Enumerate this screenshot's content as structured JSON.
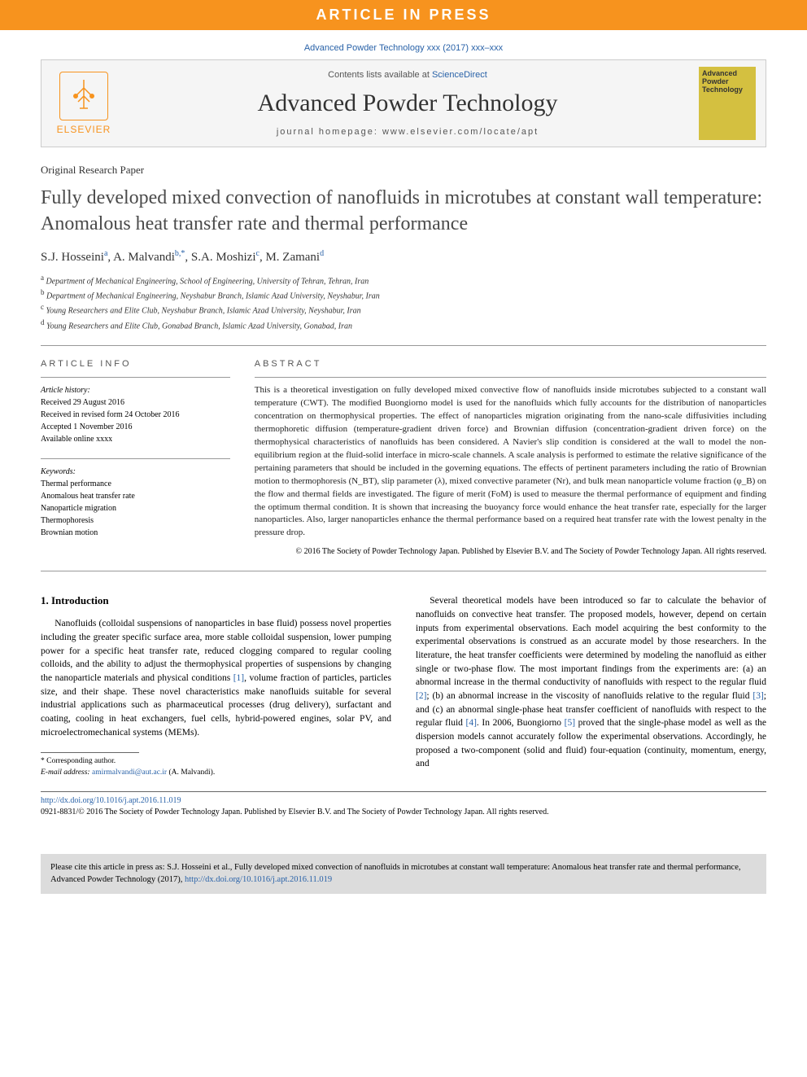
{
  "banner": "ARTICLE IN PRESS",
  "topCitation": "Advanced Powder Technology xxx (2017) xxx–xxx",
  "header": {
    "publisher": "ELSEVIER",
    "contentsLine": "Contents lists available at",
    "scienceDirect": "ScienceDirect",
    "journalName": "Advanced Powder Technology",
    "homepage": "journal homepage: www.elsevier.com/locate/apt",
    "coverTitle": "Advanced Powder Technology"
  },
  "articleType": "Original Research Paper",
  "title": "Fully developed mixed convection of nanofluids in microtubes at constant wall temperature: Anomalous heat transfer rate and thermal performance",
  "authors": [
    {
      "name": "S.J. Hosseini",
      "sup": "a"
    },
    {
      "name": "A. Malvandi",
      "sup": "b,*"
    },
    {
      "name": "S.A. Moshizi",
      "sup": "c"
    },
    {
      "name": "M. Zamani",
      "sup": "d"
    }
  ],
  "affiliations": [
    {
      "sup": "a",
      "text": "Department of Mechanical Engineering, School of Engineering, University of Tehran, Tehran, Iran"
    },
    {
      "sup": "b",
      "text": "Department of Mechanical Engineering, Neyshabur Branch, Islamic Azad University, Neyshabur, Iran"
    },
    {
      "sup": "c",
      "text": "Young Researchers and Elite Club, Neyshabur Branch, Islamic Azad University, Neyshabur, Iran"
    },
    {
      "sup": "d",
      "text": "Young Researchers and Elite Club, Gonabad Branch, Islamic Azad University, Gonabad, Iran"
    }
  ],
  "articleInfo": {
    "heading": "ARTICLE INFO",
    "historyLabel": "Article history:",
    "history": [
      "Received 29 August 2016",
      "Received in revised form 24 October 2016",
      "Accepted 1 November 2016",
      "Available online xxxx"
    ],
    "keywordsLabel": "Keywords:",
    "keywords": [
      "Thermal performance",
      "Anomalous heat transfer rate",
      "Nanoparticle migration",
      "Thermophoresis",
      "Brownian motion"
    ]
  },
  "abstract": {
    "heading": "ABSTRACT",
    "text": "This is a theoretical investigation on fully developed mixed convective flow of nanofluids inside microtubes subjected to a constant wall temperature (CWT). The modified Buongiorno model is used for the nanofluids which fully accounts for the distribution of nanoparticles concentration on thermophysical properties. The effect of nanoparticles migration originating from the nano-scale diffusivities including thermophoretic diffusion (temperature-gradient driven force) and Brownian diffusion (concentration-gradient driven force) on the thermophysical characteristics of nanofluids has been considered. A Navier's slip condition is considered at the wall to model the non-equilibrium region at the fluid-solid interface in micro-scale channels. A scale analysis is performed to estimate the relative significance of the pertaining parameters that should be included in the governing equations. The effects of pertinent parameters including the ratio of Brownian motion to thermophoresis (N_BT), slip parameter (λ), mixed convective parameter (Nr), and bulk mean nanoparticle volume fraction (φ_B) on the flow and thermal fields are investigated. The figure of merit (FoM) is used to measure the thermal performance of equipment and finding the optimum thermal condition. It is shown that increasing the buoyancy force would enhance the heat transfer rate, especially for the larger nanoparticles. Also, larger nanoparticles enhance the thermal performance based on a required heat transfer rate with the lowest penalty in the pressure drop.",
    "copyright": "© 2016 The Society of Powder Technology Japan. Published by Elsevier B.V. and The Society of Powder Technology Japan. All rights reserved."
  },
  "introduction": {
    "heading": "1. Introduction",
    "col1": "Nanofluids (colloidal suspensions of nanoparticles in base fluid) possess novel properties including the greater specific surface area, more stable colloidal suspension, lower pumping power for a specific heat transfer rate, reduced clogging compared to regular cooling colloids, and the ability to adjust the thermophysical properties of suspensions by changing the nanoparticle materials and physical conditions [1], volume fraction of particles, particles size, and their shape. These novel characteristics make nanofluids suitable for several industrial applications such as pharmaceutical processes (drug delivery), surfactant and coating, cooling in heat exchangers, fuel cells, hybrid-powered engines, solar PV, and microelectromechanical systems (MEMs).",
    "col2": "Several theoretical models have been introduced so far to calculate the behavior of nanofluids on convective heat transfer. The proposed models, however, depend on certain inputs from experimental observations. Each model acquiring the best conformity to the experimental observations is construed as an accurate model by those researchers. In the literature, the heat transfer coefficients were determined by modeling the nanofluid as either single or two-phase flow. The most important findings from the experiments are: (a) an abnormal increase in the thermal conductivity of nanofluids with respect to the regular fluid [2]; (b) an abnormal increase in the viscosity of nanofluids relative to the regular fluid [3]; and (c) an abnormal single-phase heat transfer coefficient of nanofluids with respect to the regular fluid [4]. In 2006, Buongiorno [5] proved that the single-phase model as well as the dispersion models cannot accurately follow the experimental observations. Accordingly, he proposed a two-component (solid and fluid) four-equation (continuity, momentum, energy, and"
  },
  "footnote": {
    "corresponding": "* Corresponding author.",
    "emailLabel": "E-mail address:",
    "email": "amirmalvandi@aut.ac.ir",
    "emailAuthor": "(A. Malvandi)."
  },
  "doi": {
    "link": "http://dx.doi.org/10.1016/j.apt.2016.11.019",
    "issn": "0921-8831/© 2016 The Society of Powder Technology Japan. Published by Elsevier B.V. and The Society of Powder Technology Japan. All rights reserved."
  },
  "citeBox": {
    "prefix": "Please cite this article in press as: S.J. Hosseini et al., Fully developed mixed convection of nanofluids in microtubes at constant wall temperature: Anomalous heat transfer rate and thermal performance, Advanced Powder Technology (2017),",
    "link": "http://dx.doi.org/10.1016/j.apt.2016.11.019"
  },
  "styling": {
    "accent_orange": "#f7931e",
    "link_blue": "#2962a8",
    "cover_bg": "#d4c040",
    "grey_box": "#dcdcdc",
    "body_font_size": 11.5,
    "abstract_font_size": 11,
    "title_font_size": 24
  }
}
